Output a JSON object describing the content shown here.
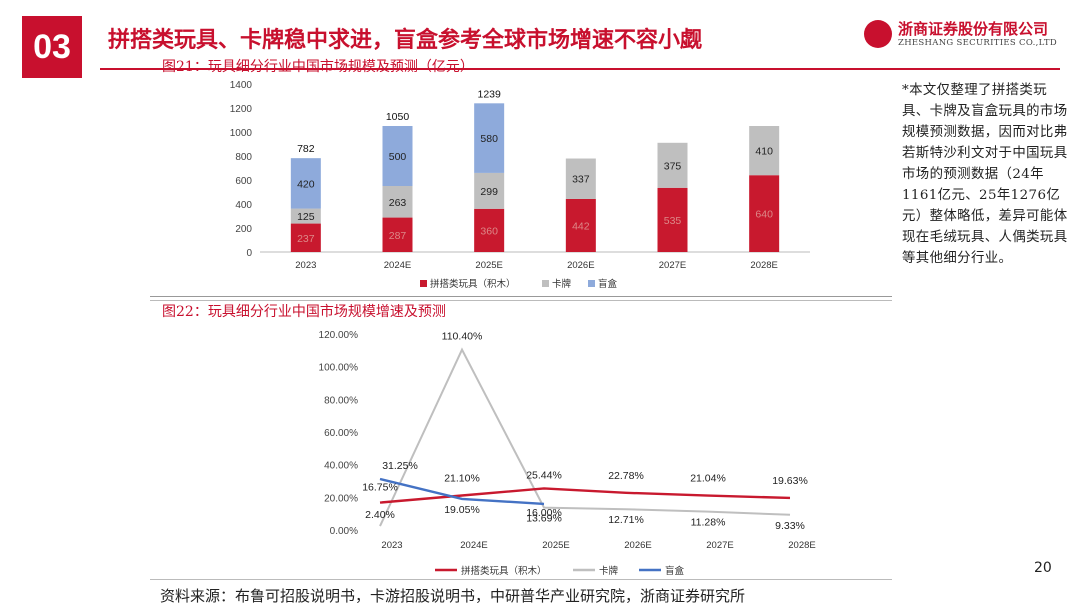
{
  "header": {
    "section_number": "03",
    "headline": "拼搭类玩具、卡牌稳中求进，盲盒参考全球市场增速不容小觑"
  },
  "logo": {
    "name_cn": "浙商证券股份有限公司",
    "name_en": "ZHESHANG SECURITIES CO.,LTD"
  },
  "note": "*本文仅整理了拼搭类玩具、卡牌及盲盒玩具的市场规模预测数据，因而对比弗若斯特沙利文对于中国玩具市场的预测数据（24年1161亿元、25年1276亿元）整体略低，差异可能体现在毛绒玩具、人偶类玩具等其他细分行业。",
  "page_number": "20",
  "source": "资料来源：布鲁可招股说明书，卡游招股说明书，中研普华产业研究院，浙商证券研究所",
  "colors": {
    "brand": "#c8102e",
    "series1": "#c8192e",
    "series2": "#bfbfbf",
    "series3": "#8eaadb",
    "line_blindbox": "#4472c4"
  },
  "chart_data": [
    {
      "type": "bar",
      "stacked": true,
      "title": "图21：玩具细分行业中国市场规模及预测（亿元）",
      "categories": [
        "2023",
        "2024E",
        "2025E",
        "2026E",
        "2027E",
        "2028E"
      ],
      "series": [
        {
          "name": "拼搭类玩具（积木）",
          "values": [
            237,
            287,
            360,
            442,
            535,
            640
          ]
        },
        {
          "name": "卡牌",
          "values": [
            125,
            263,
            299,
            337,
            375,
            410
          ]
        },
        {
          "name": "盲盒",
          "values": [
            420,
            500,
            580,
            null,
            null,
            null
          ]
        }
      ],
      "totals": [
        "782",
        "1050",
        "1239",
        null,
        null,
        null
      ],
      "y_ticks": [
        "0",
        "200",
        "400",
        "600",
        "800",
        "1000",
        "1200",
        "1400"
      ],
      "ylim": [
        0,
        1400
      ],
      "legend": "bottom"
    },
    {
      "type": "line",
      "title": "图22：玩具细分行业中国市场规模增速及预测",
      "categories": [
        "2023",
        "2024E",
        "2025E",
        "2026E",
        "2027E",
        "2028E"
      ],
      "series": [
        {
          "name": "拼搭类玩具（积木）",
          "values": [
            16.75,
            21.1,
            25.44,
            22.78,
            21.04,
            19.63
          ],
          "labels": [
            "16.75%",
            "21.10%",
            "25.44%",
            "22.78%",
            "21.04%",
            "19.63%"
          ]
        },
        {
          "name": "卡牌",
          "values": [
            2.4,
            110.4,
            13.69,
            12.71,
            11.28,
            9.33
          ],
          "labels": [
            "2.40%",
            "110.40%",
            "13.69%",
            "12.71%",
            "11.28%",
            "9.33%"
          ]
        },
        {
          "name": "盲盒",
          "values": [
            31.25,
            19.05,
            16.0,
            null,
            null,
            null
          ],
          "labels": [
            "31.25%",
            "19.05%",
            "16.00%",
            null,
            null,
            null
          ]
        }
      ],
      "y_ticks": [
        "0.00%",
        "20.00%",
        "40.00%",
        "60.00%",
        "80.00%",
        "100.00%",
        "120.00%"
      ],
      "ylim": [
        0,
        120
      ],
      "legend": "bottom"
    }
  ]
}
